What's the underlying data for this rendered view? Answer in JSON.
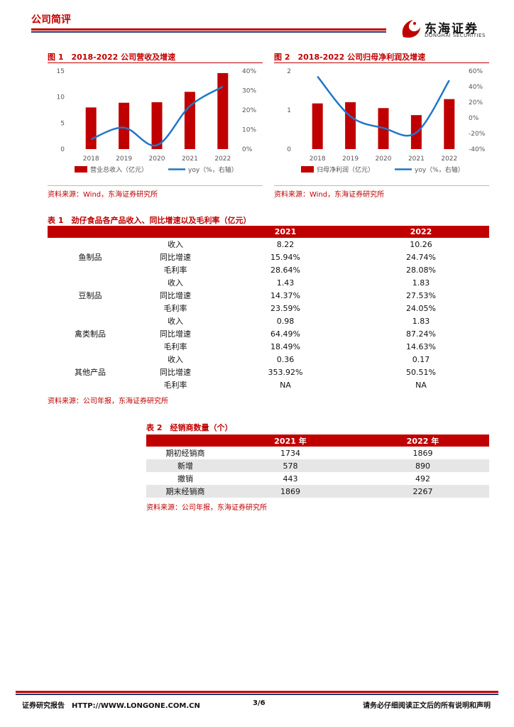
{
  "header": {
    "section": "公司简评",
    "logo_cn": "东海证券",
    "logo_en": "DONGHAI SECURITIES"
  },
  "figure1": {
    "title": "图 1　2018-2022 公司营收及增速",
    "source": "资料来源：Wind，东海证券研究所",
    "chart_data": {
      "type": "bar",
      "categories": [
        "2018",
        "2019",
        "2020",
        "2021",
        "2022"
      ],
      "series": [
        {
          "name": "营业总收入（亿元）",
          "axis": "left",
          "values": [
            8.0,
            8.9,
            9.0,
            11.0,
            14.6
          ]
        },
        {
          "name": "yoy（%，右轴）",
          "axis": "right",
          "type": "line",
          "values": [
            5,
            11,
            2,
            22,
            32
          ]
        }
      ],
      "left_ticks": [
        "0",
        "5",
        "10",
        "15"
      ],
      "right_ticks": [
        "0%",
        "10%",
        "20%",
        "30%",
        "40%"
      ],
      "ylim_left": [
        0,
        15
      ],
      "ylim_right": [
        0,
        40
      ],
      "colors": {
        "bar": "#c00000",
        "line": "#1f77c8"
      }
    }
  },
  "figure2": {
    "title": "图 2　2018-2022 公司归母净利润及增速",
    "source": "资料来源：Wind，东海证券研究所",
    "chart_data": {
      "type": "bar",
      "categories": [
        "2018",
        "2019",
        "2020",
        "2021",
        "2022"
      ],
      "series": [
        {
          "name": "归母净利润（亿元）",
          "axis": "left",
          "values": [
            1.17,
            1.2,
            1.05,
            0.87,
            1.28
          ]
        },
        {
          "name": "yoy（%，右轴）",
          "axis": "right",
          "type": "line",
          "values": [
            53,
            2,
            -13,
            -19,
            48
          ]
        }
      ],
      "left_ticks": [
        "0",
        "1",
        "2"
      ],
      "right_ticks": [
        "-40%",
        "-20%",
        "0%",
        "20%",
        "40%",
        "60%"
      ],
      "ylim_left": [
        0,
        2
      ],
      "ylim_right": [
        -40,
        60
      ],
      "colors": {
        "bar": "#c00000",
        "line": "#1f77c8"
      }
    }
  },
  "table1": {
    "title": "表 1　劲仔食品各产品收入、同比增速以及毛利率（亿元）",
    "headers": [
      "",
      "",
      "2021",
      "2022"
    ],
    "groups": [
      {
        "name": "鱼制品",
        "rows": [
          [
            "收入",
            "8.22",
            "10.26"
          ],
          [
            "同比增速",
            "15.94%",
            "24.74%"
          ],
          [
            "毛利率",
            "28.64%",
            "28.08%"
          ]
        ]
      },
      {
        "name": "豆制品",
        "rows": [
          [
            "收入",
            "1.43",
            "1.83"
          ],
          [
            "同比增速",
            "14.37%",
            "27.53%"
          ],
          [
            "毛利率",
            "23.59%",
            "24.05%"
          ]
        ]
      },
      {
        "name": "禽类制品",
        "rows": [
          [
            "收入",
            "0.98",
            "1.83"
          ],
          [
            "同比增速",
            "64.49%",
            "87.24%"
          ],
          [
            "毛利率",
            "18.49%",
            "14.63%"
          ]
        ]
      },
      {
        "name": "其他产品",
        "rows": [
          [
            "收入",
            "0.36",
            "0.17"
          ],
          [
            "同比增速",
            "353.92%",
            "50.51%"
          ],
          [
            "毛利率",
            "NA",
            "NA"
          ]
        ]
      }
    ],
    "source": "资料来源：公司年报，东海证券研究所"
  },
  "table2": {
    "title": "表 2　经销商数量（个）",
    "headers": [
      "",
      "2021 年",
      "2022 年"
    ],
    "rows": [
      [
        "期初经销商",
        "1734",
        "1869"
      ],
      [
        "新增",
        "578",
        "890"
      ],
      [
        "撤销",
        "443",
        "492"
      ],
      [
        "期末经销商",
        "1869",
        "2267"
      ]
    ],
    "source": "资料来源：公司年报，东海证券研究所"
  },
  "footer": {
    "left": "证券研究报告　HTTP://WWW.LONGONE.COM.CN",
    "page": "3/6",
    "right": "请务必仔细阅读正文后的所有说明和声明"
  }
}
